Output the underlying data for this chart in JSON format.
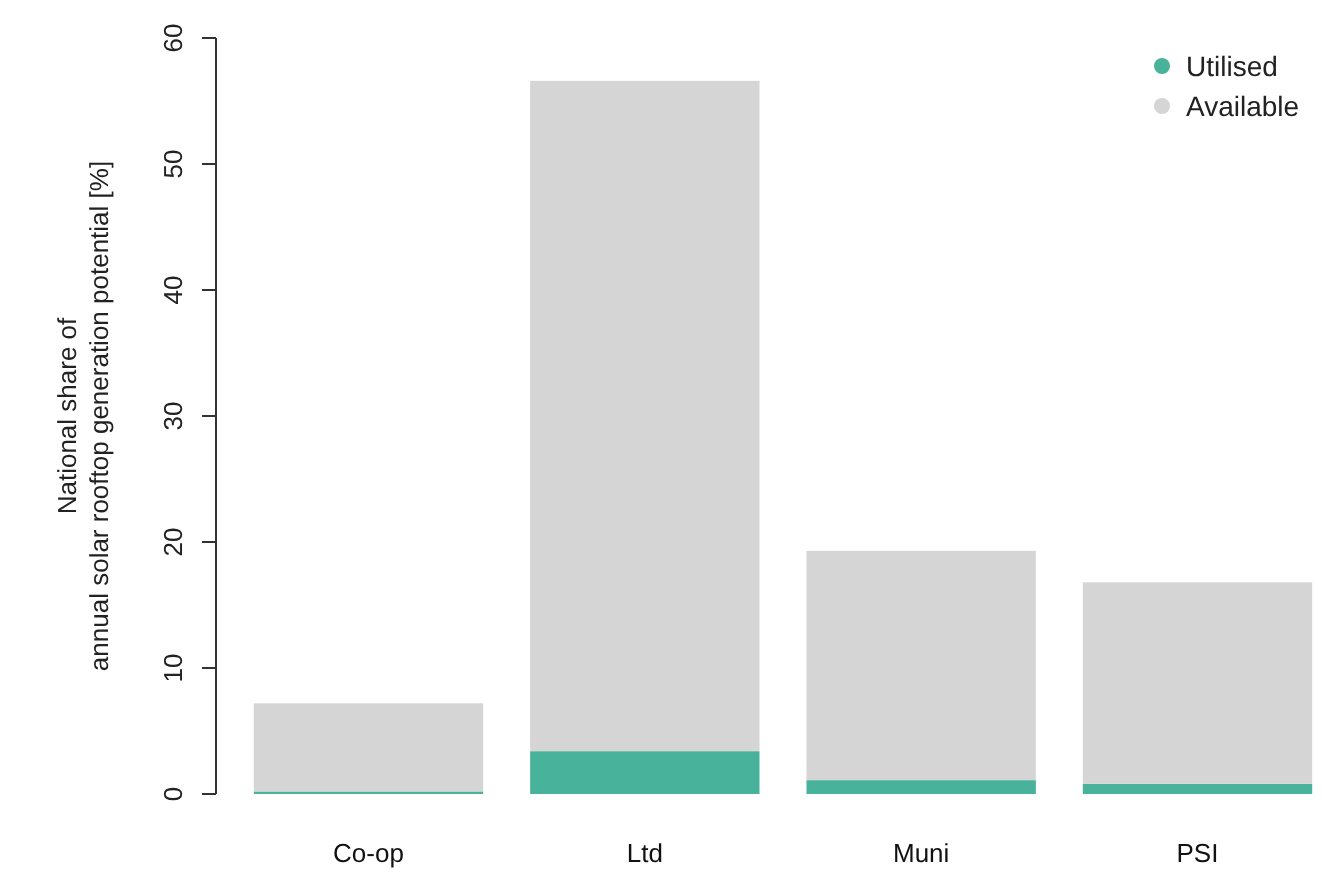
{
  "chart_data": {
    "type": "bar",
    "ylabel": "National share of\nannual solar rooftop generation potential [%]",
    "categories": [
      "Co-op",
      "Ltd",
      "Muni",
      "PSI"
    ],
    "stacked": true,
    "series": [
      {
        "name": "Utilised",
        "color": "#48b39a",
        "values": [
          0.2,
          3.4,
          1.1,
          0.8
        ]
      },
      {
        "name": "Available",
        "color": "#d5d5d5",
        "values": [
          7.0,
          53.2,
          18.2,
          16.0
        ]
      }
    ],
    "ylim": [
      0,
      60
    ],
    "yticks": [
      0,
      10,
      20,
      30,
      40,
      50,
      60
    ],
    "legend": "top right"
  }
}
